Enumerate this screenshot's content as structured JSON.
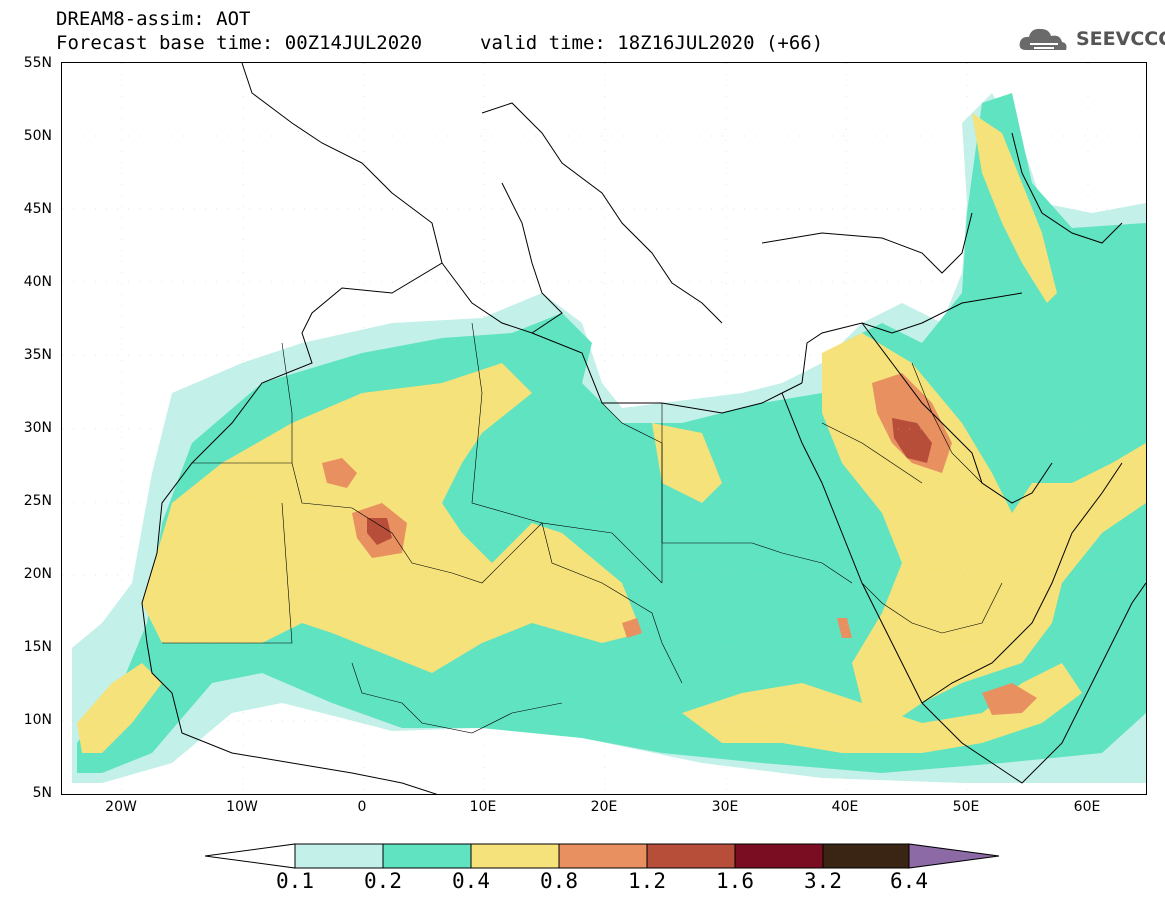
{
  "header": {
    "line1": "DREAM8-assim: AOT",
    "line2_left": "Forecast base time: 00Z14JUL2020",
    "line2_right": "valid time: 18Z16JUL2020 (+66)"
  },
  "logo": {
    "text": "SEEVCCC",
    "icon": "cloud-icon"
  },
  "map": {
    "lon_range": [
      -25,
      65
    ],
    "lat_range": [
      5,
      55
    ],
    "lat_labels": [
      "55N",
      "50N",
      "45N",
      "40N",
      "35N",
      "30N",
      "25N",
      "20N",
      "15N",
      "10N",
      "5N"
    ],
    "lon_labels": [
      "20W",
      "10W",
      "0",
      "10E",
      "20E",
      "30E",
      "40E",
      "50E",
      "60E"
    ]
  },
  "colorbar": {
    "labels": [
      "0.1",
      "0.2",
      "0.4",
      "0.8",
      "1.2",
      "1.6",
      "3.2",
      "6.4"
    ],
    "colors": [
      "#c3f0e8",
      "#5fe3c0",
      "#f5e27a",
      "#e89060",
      "#b64e3a",
      "#7a0d22",
      "#3a2515",
      "#8b6aa6"
    ],
    "under_color": "#ffffff"
  }
}
